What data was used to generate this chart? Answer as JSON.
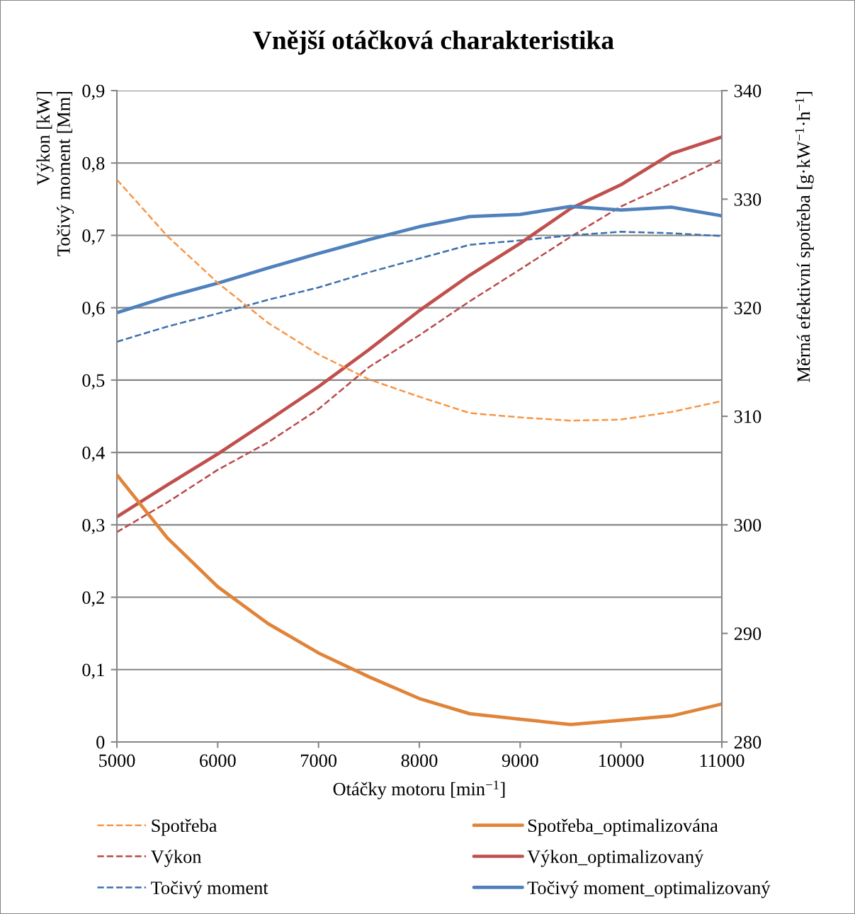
{
  "chart_data": {
    "type": "line",
    "title": "Vnější otáčková charakteristika",
    "xlabel": "Otáčky motoru [min$^{−1}$]",
    "ylabel": "Výkon [kW]\nTočivý moment [Mm]",
    "y2label": "Měrná efektivní spotřeba [g·kW$^{−1}$·h$^{−1}$]",
    "x": [
      5000,
      5500,
      6000,
      6500,
      7000,
      7500,
      8000,
      8500,
      9000,
      9500,
      10000,
      10500,
      11000
    ],
    "xlim": [
      5000,
      11000
    ],
    "xticks": [
      5000,
      6000,
      7000,
      8000,
      9000,
      10000,
      11000
    ],
    "ylim": [
      0,
      0.9
    ],
    "yticks": [
      0,
      {
        "value": 0.1,
        "label": "0,1"
      },
      {
        "value": 0.2,
        "label": "0,2"
      },
      {
        "value": 0.3,
        "label": "0,3"
      },
      {
        "value": 0.4,
        "label": "0,4"
      },
      {
        "value": 0.5,
        "label": "0,5"
      },
      {
        "value": 0.6,
        "label": "0,6"
      },
      {
        "value": 0.7,
        "label": "0,7"
      },
      {
        "value": 0.8,
        "label": "0,8"
      },
      {
        "value": 0.9,
        "label": "0,9"
      }
    ],
    "y2lim": [
      280,
      340
    ],
    "y2ticks": [
      280,
      290,
      300,
      310,
      320,
      330,
      340
    ],
    "grid": "y",
    "legend": "bottom",
    "series": [
      {
        "name": "Spotřeba",
        "color": "#f79646",
        "line_style": "dashed",
        "axis": "y2",
        "values": [
          331.8,
          326.6,
          322.3,
          318.6,
          315.7,
          313.4,
          311.8,
          310.3,
          309.9,
          309.6,
          309.7,
          310.4,
          311.4
        ]
      },
      {
        "name": "Výkon",
        "color": "#b94a47",
        "line_style": "dashed",
        "values": [
          0.29,
          0.331,
          0.376,
          0.414,
          0.46,
          0.518,
          0.562,
          0.609,
          0.653,
          0.698,
          0.74,
          0.772,
          0.805
        ]
      },
      {
        "name": "Točivý moment",
        "color": "#3d6fac",
        "line_style": "dashed",
        "values": [
          0.553,
          0.574,
          0.592,
          0.611,
          0.628,
          0.649,
          0.668,
          0.687,
          0.693,
          0.7,
          0.705,
          0.703,
          0.699
        ]
      },
      {
        "name": "Spotřeba_optimalizována",
        "color": "#e0843a",
        "line_style": "solid",
        "axis": "y2",
        "values": [
          304.6,
          298.8,
          294.3,
          290.9,
          288.2,
          286.0,
          284.0,
          282.6,
          282.1,
          281.6,
          282.0,
          282.4,
          283.5
        ]
      },
      {
        "name": "Výkon_optimalizovaný",
        "color": "#c0504d",
        "line_style": "solid",
        "values": [
          0.311,
          0.355,
          0.398,
          0.444,
          0.491,
          0.542,
          0.596,
          0.645,
          0.689,
          0.737,
          0.77,
          0.813,
          0.836
        ]
      },
      {
        "name": "Točivý moment_optimalizovaný",
        "color": "#4f81bd",
        "line_style": "solid",
        "values": [
          0.593,
          0.615,
          0.634,
          0.655,
          0.675,
          0.694,
          0.712,
          0.726,
          0.729,
          0.74,
          0.735,
          0.739,
          0.727
        ]
      }
    ]
  }
}
